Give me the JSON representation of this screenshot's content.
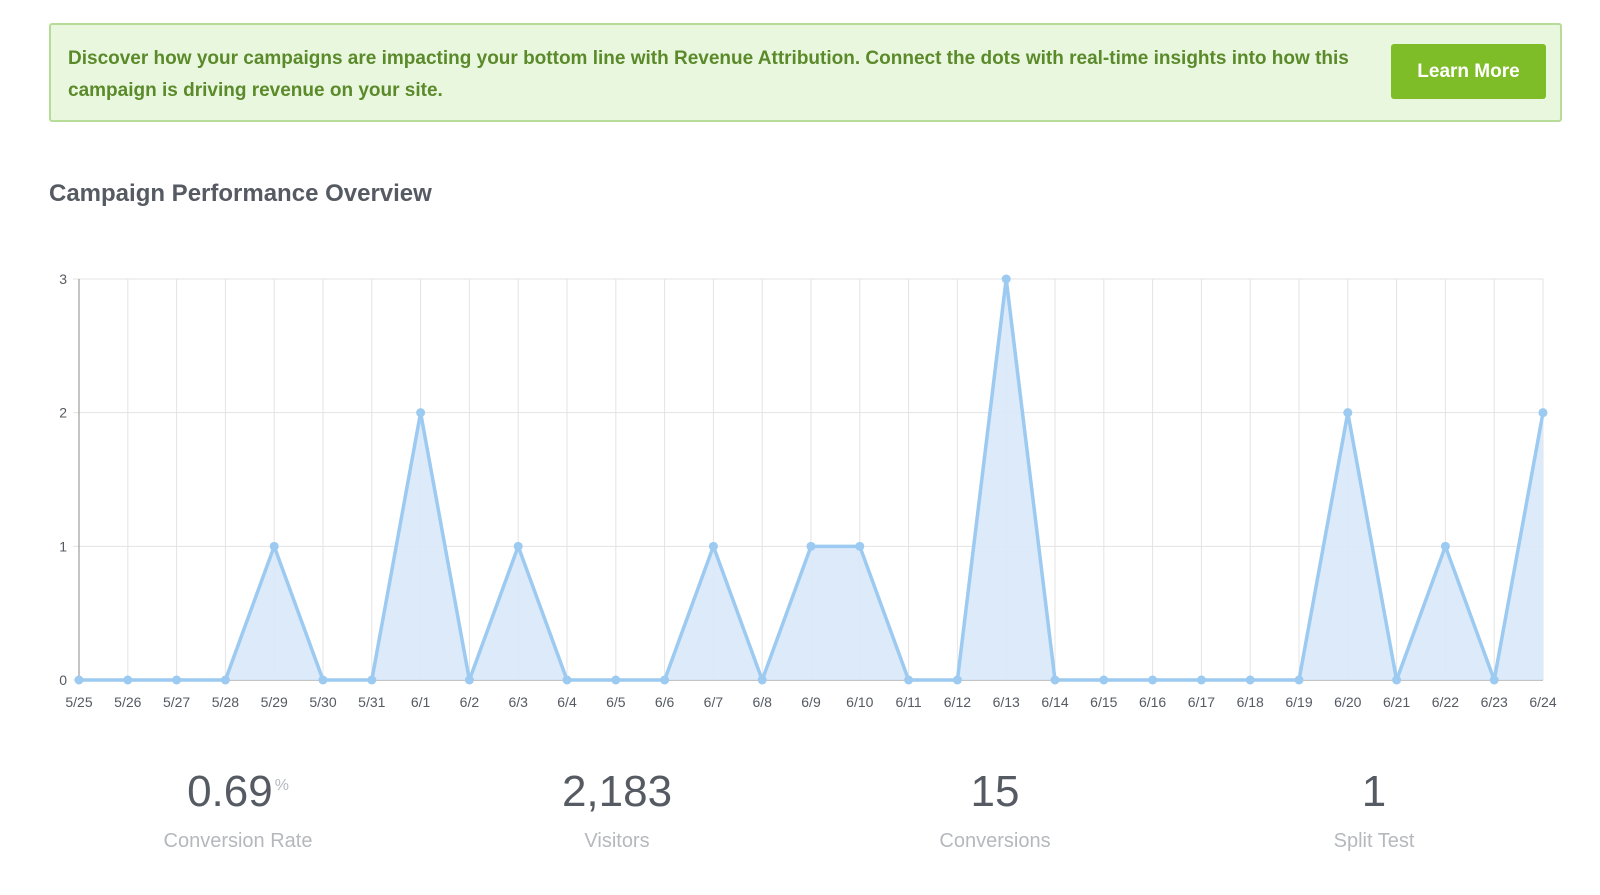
{
  "banner": {
    "text": "Discover how your campaigns are impacting your bottom line with Revenue Attribution. Connect the dots with real-time insights into how this campaign is driving revenue on your site.",
    "button_label": "Learn More"
  },
  "section_title": "Campaign Performance Overview",
  "colors": {
    "accent_green": "#7fbd28",
    "banner_bg": "#eaf7df",
    "banner_text": "#5a8a2a",
    "line": "#9ccaf0",
    "area": "#d8e8fa"
  },
  "chart_data": {
    "type": "area",
    "categories": [
      "5/25",
      "5/26",
      "5/27",
      "5/28",
      "5/29",
      "5/30",
      "5/31",
      "6/1",
      "6/2",
      "6/3",
      "6/4",
      "6/5",
      "6/6",
      "6/7",
      "6/8",
      "6/9",
      "6/10",
      "6/11",
      "6/12",
      "6/13",
      "6/14",
      "6/15",
      "6/16",
      "6/17",
      "6/18",
      "6/19",
      "6/20",
      "6/21",
      "6/22",
      "6/23",
      "6/24"
    ],
    "values": [
      0,
      0,
      0,
      0,
      1,
      0,
      0,
      2,
      0,
      1,
      0,
      0,
      0,
      1,
      0,
      1,
      1,
      0,
      0,
      3,
      0,
      0,
      0,
      0,
      0,
      0,
      2,
      0,
      1,
      0,
      2
    ],
    "y_ticks": [
      "0",
      "1",
      "2",
      "3"
    ],
    "ylim": [
      0,
      3
    ],
    "grid": true,
    "legend": "none"
  },
  "stats": [
    {
      "value": "0.69",
      "unit": "%",
      "label": "Conversion Rate"
    },
    {
      "value": "2,183",
      "unit": "",
      "label": "Visitors"
    },
    {
      "value": "15",
      "unit": "",
      "label": "Conversions"
    },
    {
      "value": "1",
      "unit": "",
      "label": "Split Test"
    }
  ]
}
